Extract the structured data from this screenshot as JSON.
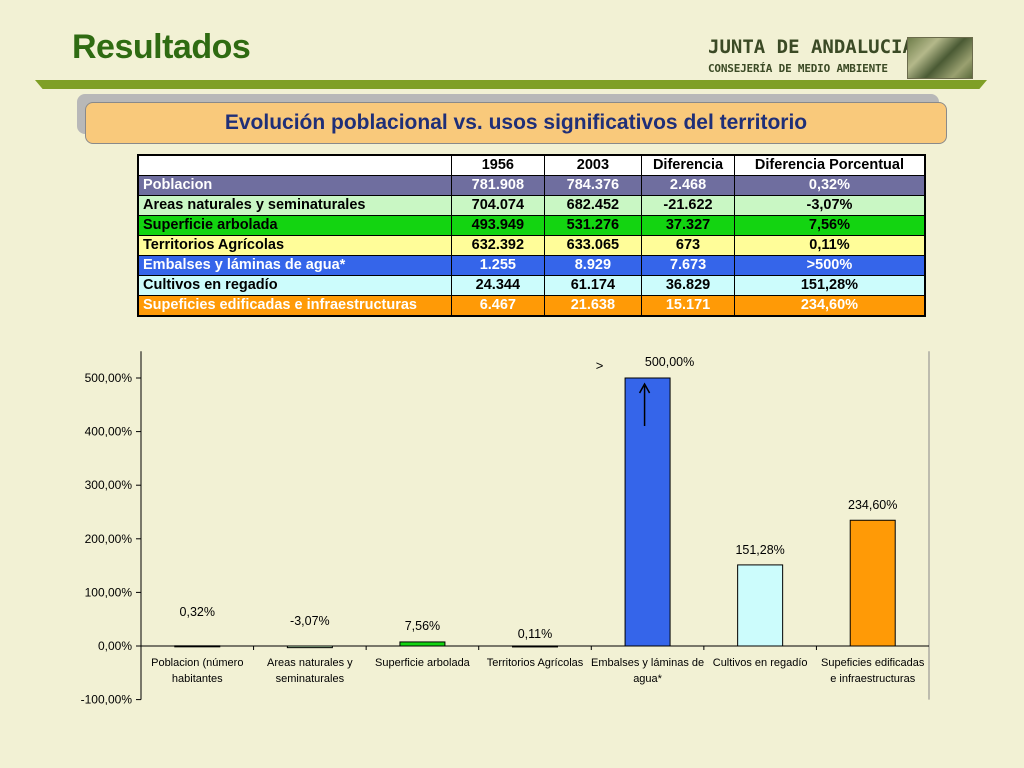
{
  "header": {
    "title": "Resultados",
    "logo_line1": "JUNTA DE ANDALUCIA",
    "logo_line2": "CONSEJERÍA DE MEDIO AMBIENTE"
  },
  "subtitle": "Evolución poblacional vs. usos significativos del territorio",
  "table": {
    "columns": [
      "",
      "1956",
      "2003",
      "Diferencia",
      "Diferencia Porcentual"
    ],
    "rows": [
      {
        "label": "Poblacion",
        "v1956": "781.908",
        "v2003": "784.376",
        "diff": "2.468",
        "pct": "0,32%",
        "bg": "#6f6e9f",
        "color": "#ffffff"
      },
      {
        "label": "Areas naturales y seminaturales",
        "v1956": "704.074",
        "v2003": "682.452",
        "diff": "-21.622",
        "pct": "-3,07%",
        "bg": "#c9f7c4",
        "color": "#000000"
      },
      {
        "label": "Superficie arbolada",
        "v1956": "493.949",
        "v2003": "531.276",
        "diff": "37.327",
        "pct": "7,56%",
        "bg": "#13d411",
        "color": "#000000"
      },
      {
        "label": "Territorios Agrícolas",
        "v1956": "632.392",
        "v2003": "633.065",
        "diff": "673",
        "pct": "0,11%",
        "bg": "#fffd99",
        "color": "#000000"
      },
      {
        "label": "Embalses y láminas de agua*",
        "v1956": "1.255",
        "v2003": "8.929",
        "diff": "7.673",
        "pct": ">500%",
        "bg": "#3565ea",
        "color": "#ffffff"
      },
      {
        "label": "Cultivos en regadío",
        "v1956": "24.344",
        "v2003": "61.174",
        "diff": "36.829",
        "pct": "151,28%",
        "bg": "#ccfcfc",
        "color": "#000000"
      },
      {
        "label": "Supeficies edificadas e infraestructuras",
        "v1956": "6.467",
        "v2003": "21.638",
        "diff": "15.171",
        "pct": "234,60%",
        "bg": "#ff9a06",
        "color": "#ffffff"
      }
    ]
  },
  "chart_data": {
    "type": "bar",
    "categories": [
      [
        "Poblacion (número",
        "habitantes"
      ],
      [
        "Areas naturales y",
        "seminaturales"
      ],
      [
        "Superficie arbolada"
      ],
      [
        "Territorios Agrícolas"
      ],
      [
        "Embalses y láminas de",
        "agua*"
      ],
      [
        "Cultivos en regadío"
      ],
      [
        "Supeficies edificadas",
        "e infraestructuras"
      ]
    ],
    "values": [
      0.32,
      -3.07,
      7.56,
      0.11,
      500,
      151.28,
      234.6
    ],
    "data_labels": [
      "0,32%",
      "-3,07%",
      "7,56%",
      "0,11%",
      "500,00%",
      "151,28%",
      "234,60%"
    ],
    "bar_colors": [
      "#6f6e9f",
      "#c9f7c4",
      "#13d411",
      "#fffd99",
      "#3565ea",
      "#ccfcfc",
      "#ff9a06"
    ],
    "ylim": [
      -100,
      550
    ],
    "yticks": [
      -100,
      0,
      100,
      200,
      300,
      400,
      500
    ],
    "ytick_labels": [
      "-100,00%",
      "0,00%",
      "100,00%",
      "200,00%",
      "300,00%",
      "400,00%",
      "500,00%"
    ],
    "overflow_marker": ">",
    "grid": false,
    "legend": "none"
  }
}
